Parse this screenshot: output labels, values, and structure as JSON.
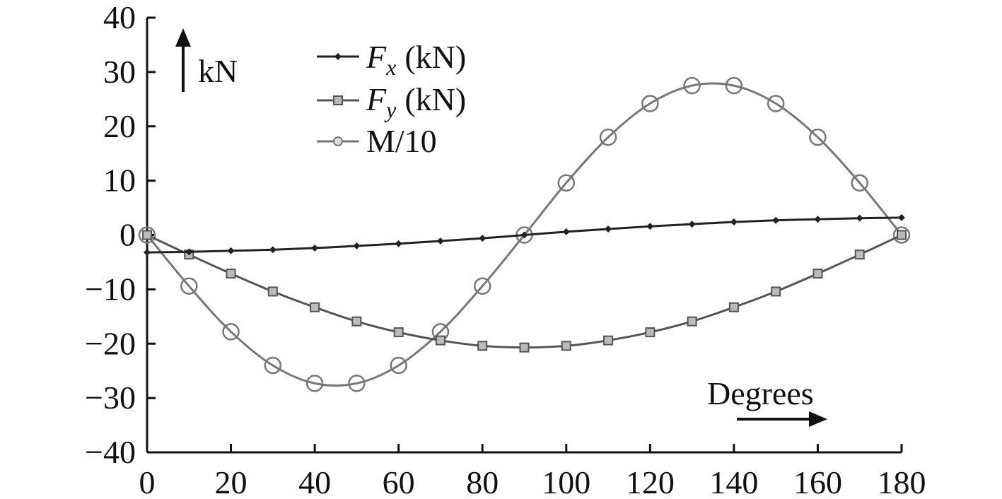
{
  "chart_data": {
    "type": "line",
    "title": "",
    "xlabel": "Degrees",
    "ylabel": "kN",
    "xlim": [
      0,
      180
    ],
    "ylim": [
      -40,
      40
    ],
    "xticks": [
      0,
      20,
      40,
      60,
      80,
      100,
      120,
      140,
      160,
      180
    ],
    "yticks": [
      -40,
      -30,
      -20,
      -10,
      0,
      10,
      20,
      30,
      40
    ],
    "xtick_labels": [
      "0",
      "20",
      "40",
      "60",
      "80",
      "100",
      "120",
      "140",
      "160",
      "180"
    ],
    "ytick_labels": [
      "−40",
      "−30",
      "−20",
      "−10",
      "0",
      "10",
      "20",
      "30",
      "40"
    ],
    "grid": false,
    "legend_position": "top-left",
    "x": [
      0,
      10,
      20,
      30,
      40,
      50,
      60,
      70,
      80,
      90,
      100,
      110,
      120,
      130,
      140,
      150,
      160,
      170,
      180
    ],
    "series": [
      {
        "name": "Fx (kN)",
        "name_main": "F",
        "name_sub": "x",
        "name_rest": "(kN)",
        "marker": "diamond",
        "color": "#222222",
        "values": [
          -3.2,
          -3.1,
          -2.9,
          -2.7,
          -2.4,
          -2.0,
          -1.6,
          -1.1,
          -0.6,
          0.0,
          0.6,
          1.1,
          1.6,
          2.0,
          2.4,
          2.7,
          2.9,
          3.1,
          3.2
        ]
      },
      {
        "name": "Fy (kN)",
        "name_main": "F",
        "name_sub": "y",
        "name_rest": "(kN)",
        "marker": "square",
        "color": "#555555",
        "values": [
          0.0,
          -3.6,
          -7.1,
          -10.4,
          -13.3,
          -15.9,
          -17.9,
          -19.4,
          -20.4,
          -20.7,
          -20.4,
          -19.4,
          -17.9,
          -15.9,
          -13.3,
          -10.4,
          -7.1,
          -3.6,
          0.0
        ]
      },
      {
        "name": "M/10",
        "marker": "circle",
        "color": "#777777",
        "values": [
          0.0,
          -9.4,
          -17.8,
          -24.0,
          -27.3,
          -27.3,
          -24.0,
          -17.8,
          -9.4,
          0.0,
          9.6,
          18.0,
          24.2,
          27.5,
          27.5,
          24.2,
          18.0,
          9.6,
          0.0
        ]
      }
    ]
  }
}
